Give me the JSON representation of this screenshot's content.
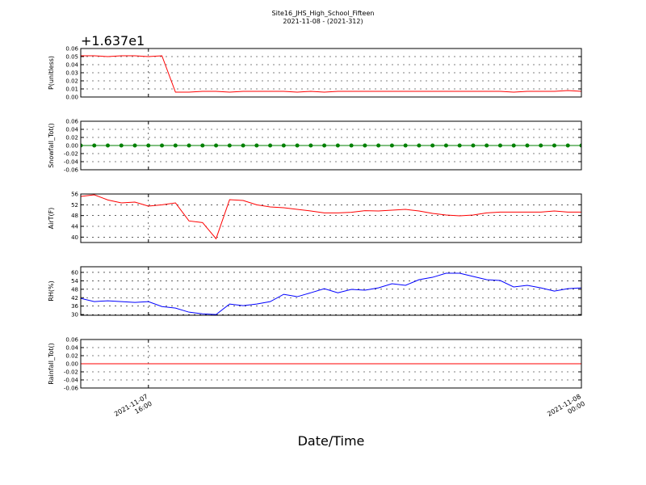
{
  "chart_data": {
    "type": "line",
    "title": "Site16_JHS_High_School_Fifteen",
    "subtitle": "2021-11-08 - (2021-312)",
    "xlabel": "Date/Time",
    "x": [
      "2021-11-07 14:45",
      "2021-11-07 15:00",
      "2021-11-07 15:15",
      "2021-11-07 15:30",
      "2021-11-07 15:45",
      "2021-11-07 16:00",
      "2021-11-07 16:15",
      "2021-11-07 16:30",
      "2021-11-07 16:45",
      "2021-11-07 17:00",
      "2021-11-07 17:15",
      "2021-11-07 17:30",
      "2021-11-07 17:45",
      "2021-11-07 18:00",
      "2021-11-07 18:15",
      "2021-11-07 18:30",
      "2021-11-07 18:45",
      "2021-11-07 19:00",
      "2021-11-07 19:15",
      "2021-11-07 19:30",
      "2021-11-07 19:45",
      "2021-11-07 20:00",
      "2021-11-07 20:15",
      "2021-11-07 20:30",
      "2021-11-07 20:45",
      "2021-11-07 21:00",
      "2021-11-07 21:15",
      "2021-11-07 21:30",
      "2021-11-07 21:45",
      "2021-11-07 22:00",
      "2021-11-07 22:15",
      "2021-11-07 22:30",
      "2021-11-07 22:45",
      "2021-11-07 23:00",
      "2021-11-07 23:15",
      "2021-11-07 23:30",
      "2021-11-07 23:45",
      "2021-11-08 00:00"
    ],
    "xlim": [
      "2021-11-07 14:45",
      "2021-11-08 00:00"
    ],
    "xticks": [
      "2021-11-07 16:00",
      "2021-11-08 00:00"
    ],
    "grid": true,
    "panels": [
      {
        "ylabel": "P(unitless)",
        "offset": "+1.637e1",
        "ylim": [
          0,
          0.06
        ],
        "yticks": [
          {
            "value": 0,
            "label": "0.00"
          },
          0.01,
          0.02,
          0.03,
          0.04,
          0.05,
          0.06
        ],
        "series": [
          {
            "color": "#ff0000",
            "marker": false,
            "values": [
              0.051,
              0.051,
              0.05,
              0.051,
              0.051,
              0.05,
              0.051,
              0.006,
              0.006,
              0.007,
              0.007,
              0.006,
              0.007,
              0.007,
              0.007,
              0.007,
              0.006,
              0.007,
              0.006,
              0.007,
              0.007,
              0.007,
              0.007,
              0.007,
              0.007,
              0.007,
              0.007,
              0.007,
              0.007,
              0.007,
              0.007,
              0.007,
              0.006,
              0.007,
              0.007,
              0.007,
              0.008,
              0.007
            ]
          }
        ]
      },
      {
        "ylabel": "Snowfall_Tot()",
        "ylim": [
          -0.06,
          0.06
        ],
        "yticks": [
          -0.06,
          -0.04,
          -0.02,
          {
            "value": 0,
            "label": "0.00"
          },
          0.02,
          0.04,
          0.06
        ],
        "series": [
          {
            "color": "#008000",
            "marker": true,
            "values": [
              0,
              0,
              0,
              0,
              0,
              0,
              0,
              0,
              0,
              0,
              0,
              0,
              0,
              0,
              0,
              0,
              0,
              0,
              0,
              0,
              0,
              0,
              0,
              0,
              0,
              0,
              0,
              0,
              0,
              0,
              0,
              0,
              0,
              0,
              0,
              0,
              0,
              0
            ]
          }
        ]
      },
      {
        "ylabel": "AirT(F)",
        "ylim": [
          38,
          56
        ],
        "yticks": [
          40,
          44,
          48,
          52,
          56
        ],
        "series": [
          {
            "color": "#ff0000",
            "marker": false,
            "values": [
              55.1,
              55.7,
              53.8,
              52.7,
              53,
              51.5,
              52,
              52.7,
              46,
              45.4,
              39.4,
              53.9,
              53.6,
              52,
              51.2,
              50.9,
              50.3,
              49.7,
              49,
              49,
              49.2,
              49.8,
              49.7,
              50,
              50.3,
              49.7,
              48.8,
              48.2,
              47.9,
              48.2,
              49,
              49.3,
              49.3,
              49.3,
              49.3,
              49.7,
              49.3,
              49.3
            ]
          }
        ]
      },
      {
        "ylabel": "RH(%)",
        "ylim": [
          29.5,
          64
        ],
        "yticks": [
          30,
          36,
          42,
          48,
          54,
          60
        ],
        "series": [
          {
            "color": "#0000ff",
            "marker": false,
            "values": [
              41.5,
              39.2,
              39.8,
              39.2,
              38.6,
              39.2,
              35.7,
              34.6,
              31.7,
              30.5,
              30,
              37.5,
              36.3,
              37.5,
              39.2,
              44.4,
              42.7,
              45.5,
              48.4,
              45.5,
              47.9,
              47.3,
              49,
              51.9,
              50.8,
              54.8,
              56.5,
              59.4,
              59.4,
              57.1,
              54.8,
              54.2,
              49.6,
              50.8,
              49,
              46.7,
              48.4,
              49
            ]
          }
        ]
      },
      {
        "ylabel": "Rainfall_Tot()",
        "ylim": [
          -0.06,
          0.06
        ],
        "yticks": [
          -0.06,
          -0.04,
          -0.02,
          {
            "value": 0,
            "label": "0.00"
          },
          0.02,
          0.04,
          0.06
        ],
        "series": [
          {
            "color": "#ff0000",
            "marker": false,
            "values": [
              0,
              0,
              0,
              0,
              0,
              0,
              0,
              0,
              0,
              0,
              0,
              0,
              0,
              0,
              0,
              0,
              0,
              0,
              0,
              0,
              0,
              0,
              0,
              0,
              0,
              0,
              0,
              0,
              0,
              0,
              0,
              0,
              0,
              0,
              0,
              0,
              0,
              0
            ]
          }
        ]
      }
    ]
  }
}
